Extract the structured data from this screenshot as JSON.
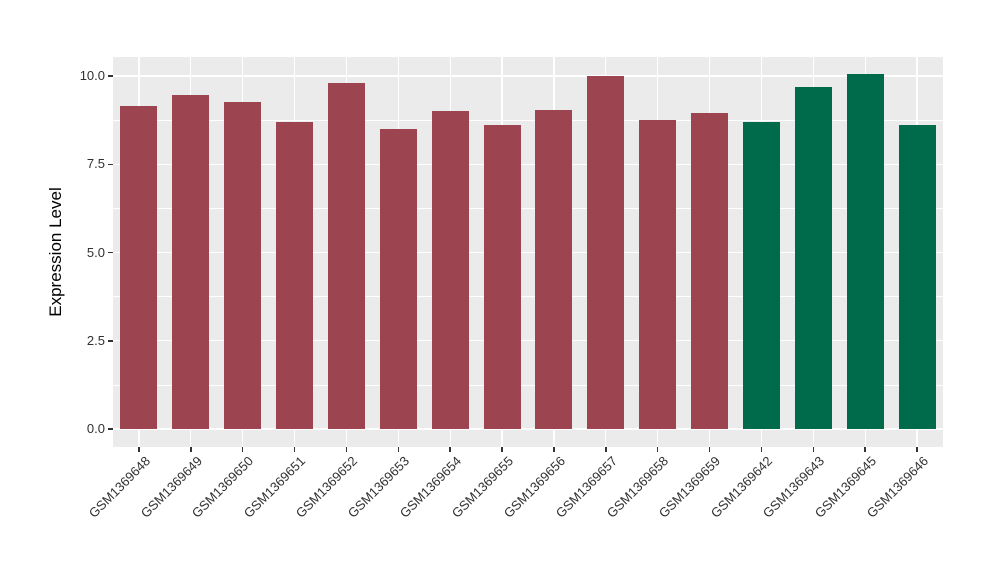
{
  "chart_data": {
    "type": "bar",
    "title": "",
    "xlabel": "",
    "ylabel": "Expression Level",
    "ylim": [
      0,
      10.55
    ],
    "yticks": [
      0,
      2.5,
      5,
      7.5,
      10
    ],
    "ytick_labels": [
      "0.0",
      "2.5",
      "5.0",
      "7.5",
      "10.0"
    ],
    "yticks_minor": [
      1.25,
      3.75,
      6.25,
      8.75
    ],
    "grid": "on",
    "legend_position": "none",
    "panel_background": "#EBEBEB",
    "gridline_color": "#FFFFFF",
    "categories": [
      "GSM1369648",
      "GSM1369649",
      "GSM1369650",
      "GSM1369651",
      "GSM1369652",
      "GSM1369653",
      "GSM1369654",
      "GSM1369655",
      "GSM1369656",
      "GSM1369657",
      "GSM1369658",
      "GSM1369659",
      "GSM1369642",
      "GSM1369643",
      "GSM1369645",
      "GSM1369646"
    ],
    "values": [
      9.15,
      9.45,
      9.25,
      8.7,
      9.8,
      8.5,
      9.0,
      8.6,
      9.05,
      10.0,
      8.75,
      8.95,
      8.7,
      9.7,
      10.05,
      8.6
    ],
    "groups": [
      "A",
      "A",
      "A",
      "A",
      "A",
      "A",
      "A",
      "A",
      "A",
      "A",
      "A",
      "A",
      "B",
      "B",
      "B",
      "B"
    ],
    "group_colors": {
      "A": "#9C4450",
      "B": "#006B4A"
    }
  }
}
